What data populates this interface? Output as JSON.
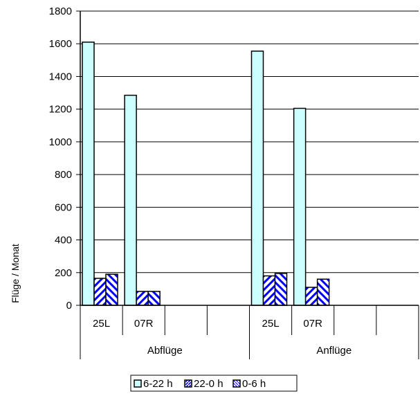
{
  "chart_data": {
    "type": "bar",
    "ylabel": "Flüge / Monat",
    "ylim": [
      0,
      1800
    ],
    "yticks": [
      0,
      200,
      400,
      600,
      800,
      1000,
      1200,
      1400,
      1600,
      1800
    ],
    "grid": true,
    "legend_position": "bottom",
    "groups": [
      "Abflüge",
      "Anflüge"
    ],
    "categories": [
      "25L",
      "07R",
      "",
      "",
      "25L",
      "07R",
      "",
      ""
    ],
    "series": [
      {
        "name": "6-22 h",
        "color": "#ccffff",
        "pattern": "solid",
        "values": [
          1610,
          1285,
          null,
          null,
          1555,
          1205,
          null,
          null
        ]
      },
      {
        "name": "22-0 h",
        "color": "#0000ff",
        "pattern": "diagonal-zigzag",
        "values": [
          165,
          85,
          null,
          null,
          180,
          110,
          null,
          null
        ]
      },
      {
        "name": "0-6 h",
        "color": "#0000ff",
        "pattern": "diamond-zigzag",
        "values": [
          190,
          85,
          null,
          null,
          195,
          160,
          null,
          null
        ]
      }
    ]
  }
}
